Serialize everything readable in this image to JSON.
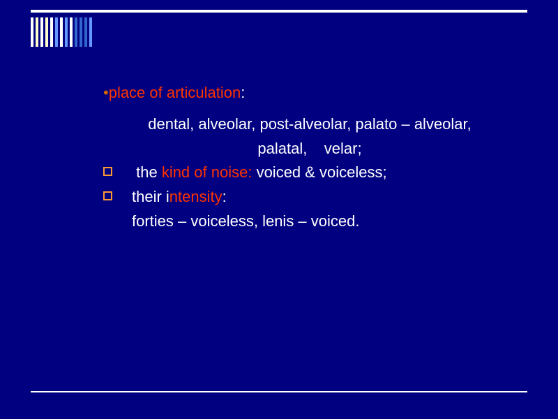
{
  "stripes": {
    "colors": [
      "#ffffff",
      "#ffffcc",
      "#ffffff",
      "#ffffcc",
      "#ffffff",
      "#6699ff",
      "#ffffff",
      "#6699ff",
      "#ffffff",
      "#3366cc",
      "#3366cc",
      "#3366cc",
      "#6699ff"
    ]
  },
  "heading": {
    "bullet": "•",
    "text_red": "place of articulation",
    "colon": ":"
  },
  "line1": "dental, alveolar, post-alveolar, palato –  alveolar,",
  "line2a": "palatal,",
  "line2b": "    velar;",
  "item1": {
    "pre": " the ",
    "red": "kind  of noise:",
    "post": " voiced & voiceless;"
  },
  "item2": {
    "pre": "their i",
    "red": "ntensity",
    "colon": ":"
  },
  "line3": "forties – voiceless, lenis – voiced.",
  "style": {
    "background": "#000080",
    "text_color": "#ffffff",
    "accent_red": "#ff3300",
    "bullet_border": "#ff9933",
    "fontsize": 22
  }
}
